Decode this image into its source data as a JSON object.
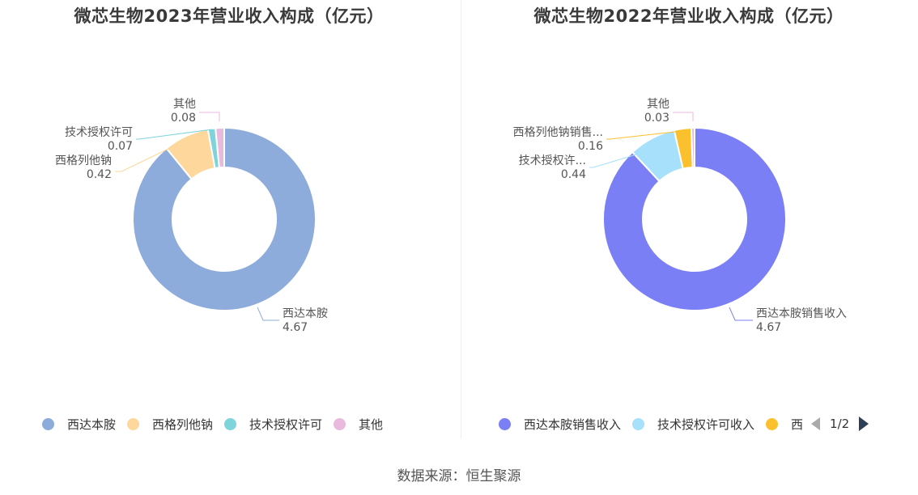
{
  "chart_data": [
    {
      "type": "pie",
      "title": "微芯生物2023年营业收入构成（亿元）",
      "categories": [
        "西达本胺",
        "西格列他钠",
        "技术授权许可",
        "其他"
      ],
      "values": [
        4.67,
        0.42,
        0.07,
        0.08
      ],
      "colors": [
        "#8eacdb",
        "#fdd79b",
        "#7fd4dc",
        "#e9b9de"
      ],
      "legend": [
        "西达本胺",
        "西格列他钠",
        "技术授权许可",
        "其他"
      ],
      "legend_position": "bottom",
      "style": "donut"
    },
    {
      "type": "pie",
      "title": "微芯生物2022年营业收入构成（亿元）",
      "categories": [
        "西达本胺销售收入",
        "技术授权许可收入",
        "西格列他钠销售收入",
        "其他"
      ],
      "display_labels": [
        "西达本胺销售收入",
        "技术授权许...",
        "西格列他钠销售...",
        "其他"
      ],
      "values": [
        4.67,
        0.44,
        0.16,
        0.03
      ],
      "colors": [
        "#7b7ff6",
        "#a6e0fb",
        "#fbc02d",
        "#e9b9de"
      ],
      "legend": [
        "西达本胺销售收入",
        "技术授权许可收入",
        "西"
      ],
      "legend_position": "bottom",
      "legend_page": "1/2",
      "style": "donut"
    }
  ],
  "footer": {
    "source": "数据来源：恒生聚源"
  }
}
